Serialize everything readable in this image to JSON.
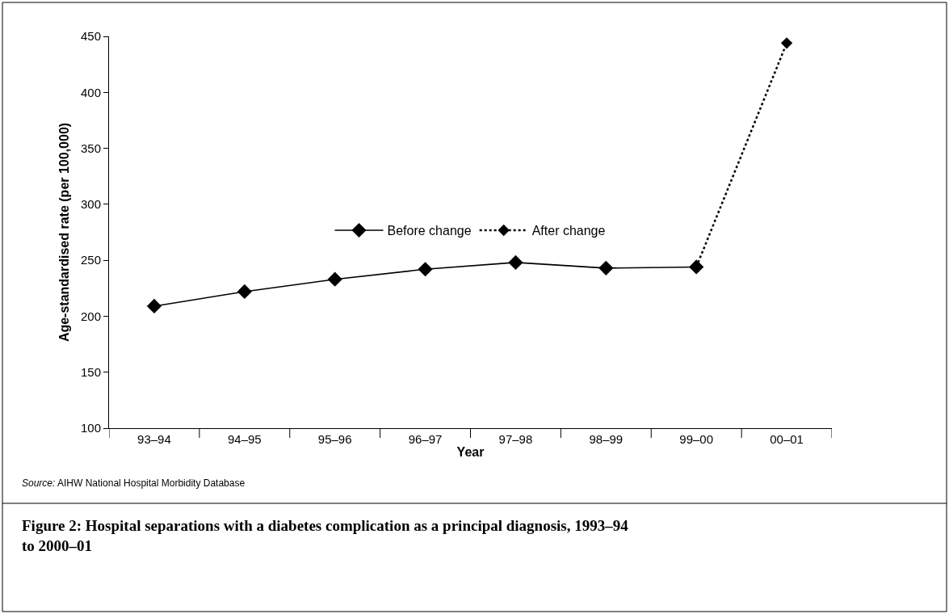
{
  "chart_data": {
    "type": "line",
    "title": "Figure 2: Hospital separations with a diabetes complication as a principal diagnosis, 1993–94 to 2000–01",
    "xlabel": "Year",
    "ylabel": "Age-standardised rate (per 100,000)",
    "annotations": [
      "Source: AIHW National Hospital Morbidity Database"
    ],
    "categories": [
      "93–94",
      "94–95",
      "95–96",
      "96–97",
      "97–98",
      "98–99",
      "99–00",
      "00–01"
    ],
    "series": [
      {
        "name": "Before change",
        "color": "#000000",
        "line_style": "solid",
        "values": [
          209,
          222,
          233,
          242,
          248,
          243,
          244,
          null
        ]
      },
      {
        "name": "After change",
        "color": "#000000",
        "line_style": "dotted",
        "values": [
          null,
          null,
          null,
          null,
          null,
          null,
          244,
          444
        ]
      }
    ],
    "ylim": [
      100,
      450
    ],
    "yticks": [
      100,
      150,
      200,
      250,
      300,
      350,
      400,
      450
    ],
    "legend": "center",
    "marker": "diamond"
  }
}
